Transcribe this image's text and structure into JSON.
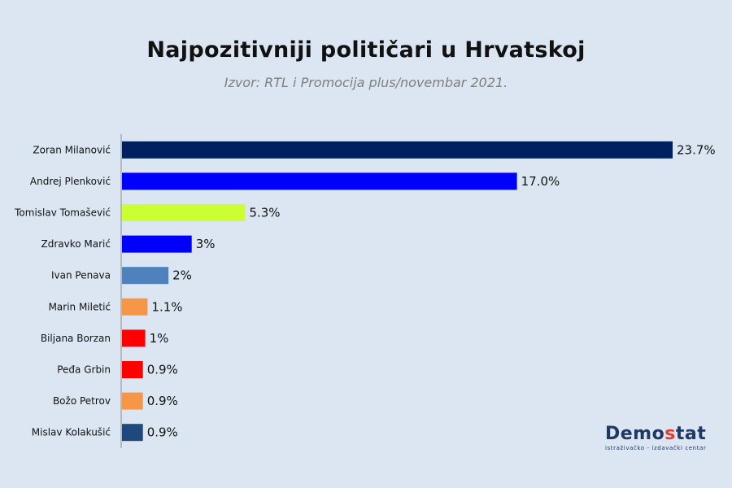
{
  "chart_data": {
    "type": "bar",
    "orientation": "horizontal",
    "title": "Najpozitivniji političari u  Hrvatskoj",
    "subtitle": "Izvor: RTL i Promocija plus/novembar 2021.",
    "categories": [
      "Zoran Milanović",
      "Andrej Plenković",
      "Tomislav Tomašević",
      "Zdravko Marić",
      "Ivan Penava",
      "Marin Miletić",
      "Biljana Borzan",
      "Peđa Grbin",
      "Božo Petrov",
      "Mislav Kolakušić"
    ],
    "values": [
      23.7,
      17.0,
      5.3,
      3,
      2,
      1.1,
      1,
      0.9,
      0.9,
      0.9
    ],
    "value_labels": [
      "23.7%",
      "17.0%",
      "5.3%",
      "3%",
      "2%",
      "1.1%",
      "1%",
      "0.9%",
      "0.9%",
      "0.9%"
    ],
    "colors": [
      "#002060",
      "#0000ff",
      "#ccff33",
      "#0000ff",
      "#4f81bd",
      "#f79646",
      "#ff0000",
      "#ff0000",
      "#f79646",
      "#1f497d"
    ],
    "xlim": [
      0,
      24.5
    ],
    "grid": false,
    "legend": "none"
  },
  "logo": {
    "name_part1": "Demo",
    "name_accent": "s",
    "name_part2": "tat",
    "tagline": "istraživačko - izdavački  centar"
  }
}
